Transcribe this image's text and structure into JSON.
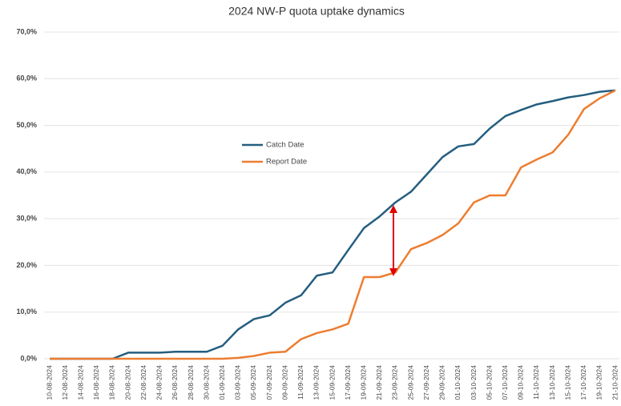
{
  "chart_data": {
    "type": "line",
    "title": "2024 NW-P quota uptake dynamics",
    "categories": [
      "10-08-2024",
      "12-08-2024",
      "14-08-2024",
      "16-08-2024",
      "18-08-2024",
      "20-08-2024",
      "22-08-2024",
      "24-08-2024",
      "26-08-2024",
      "28-08-2024",
      "30-08-2024",
      "01-09-2024",
      "03-09-2024",
      "05-09-2024",
      "07-09-2024",
      "09-09-2024",
      "11-09-2024",
      "13-09-2024",
      "15-09-2024",
      "17-09-2024",
      "19-09-2024",
      "21-09-2024",
      "23-09-2024",
      "25-09-2024",
      "27-09-2024",
      "29-09-2024",
      "01-10-2024",
      "03-10-2024",
      "05-10-2024",
      "07-10-2024",
      "09-10-2024",
      "11-10-2024",
      "13-10-2024",
      "15-10-2024",
      "17-10-2024",
      "19-10-2024",
      "21-10-2024"
    ],
    "series": [
      {
        "name": "Catch Date",
        "color": "#245e7f",
        "values": [
          0,
          0,
          0,
          0,
          0,
          1.3,
          1.3,
          1.3,
          1.5,
          1.5,
          1.5,
          2.8,
          6.3,
          8.5,
          9.3,
          12,
          13.6,
          17.8,
          18.5,
          23.3,
          28,
          30.5,
          33.5,
          35.8,
          39.5,
          43.2,
          45.5,
          46,
          49.3,
          52,
          53.3,
          54.5,
          55.2,
          56,
          56.5,
          57.2,
          57.5
        ]
      },
      {
        "name": "Report Date",
        "color": "#ed7d31",
        "values": [
          0,
          0,
          0,
          0,
          0,
          0,
          0,
          0,
          0,
          0,
          0,
          0,
          0.2,
          0.6,
          1.3,
          1.5,
          4.2,
          5.5,
          6.3,
          7.5,
          17.5,
          17.5,
          18.5,
          23.5,
          24.8,
          26.5,
          29,
          33.5,
          35,
          35,
          41,
          42.7,
          44.2,
          48,
          53.5,
          55.8,
          57.5
        ]
      }
    ],
    "ylim": [
      0,
      70
    ],
    "yticks": [
      {
        "value": 0,
        "label": "0,0%"
      },
      {
        "value": 10,
        "label": "10,0%"
      },
      {
        "value": 20,
        "label": "20,0%"
      },
      {
        "value": 30,
        "label": "30,0%"
      },
      {
        "value": 40,
        "label": "40,0%"
      },
      {
        "value": 50,
        "label": "50,0%"
      },
      {
        "value": 60,
        "label": "60,0%"
      },
      {
        "value": 70,
        "label": "70,0%"
      }
    ],
    "grid": true
  }
}
